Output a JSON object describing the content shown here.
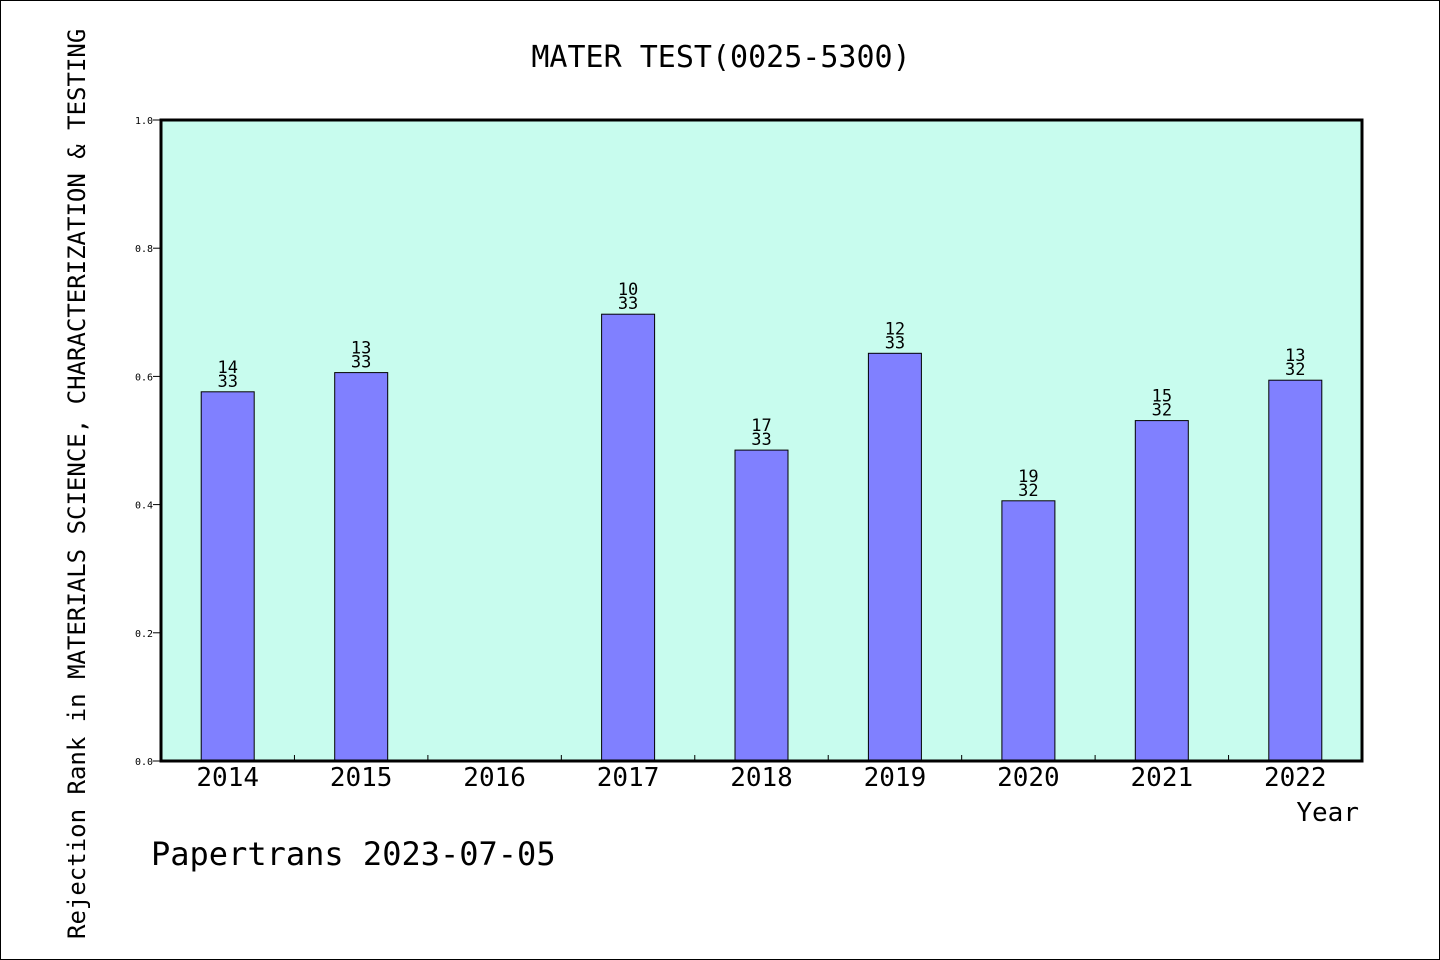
{
  "chart_data": {
    "type": "bar",
    "title": "MATER TEST(0025-5300)",
    "xlabel": "Year",
    "ylabel": "Rejection Rank in MATERIALS SCIENCE, CHARACTERIZATION & TESTING",
    "categories": [
      "2014",
      "2015",
      "2016",
      "2017",
      "2018",
      "2019",
      "2020",
      "2021",
      "2022"
    ],
    "values": [
      0.576,
      0.606,
      null,
      0.697,
      0.485,
      0.636,
      0.406,
      0.531,
      0.594
    ],
    "ranks": [
      "14",
      "13",
      null,
      "10",
      "17",
      "12",
      "19",
      "15",
      "13"
    ],
    "totals": [
      "33",
      "33",
      null,
      "33",
      "33",
      "33",
      "32",
      "32",
      "32"
    ],
    "ylim": [
      0,
      1.0
    ],
    "yticks": [
      "0.0",
      "0.2",
      "0.4",
      "0.6",
      "0.8",
      "1.0"
    ],
    "grid": false,
    "colors": {
      "plot_bg": "#c8fcee",
      "bar": "#8080ff",
      "bar_stroke": "#000000"
    }
  },
  "footer": {
    "credit": "Papertrans 2023-07-05"
  }
}
